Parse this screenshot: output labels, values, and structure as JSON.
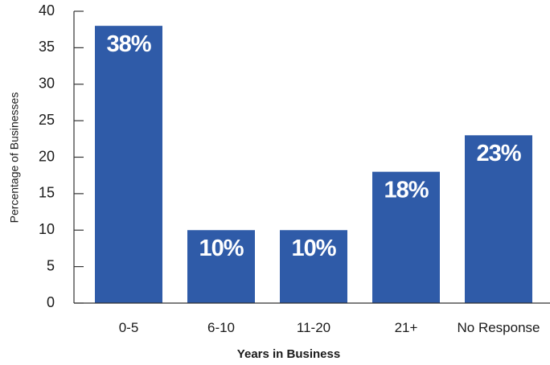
{
  "chart_data": {
    "type": "bar",
    "categories": [
      "0-5",
      "6-10",
      "11-20",
      "21+",
      "No Response"
    ],
    "values": [
      38,
      10,
      10,
      18,
      23
    ],
    "data_labels": [
      "38%",
      "10%",
      "10%",
      "18%",
      "23%"
    ],
    "xlabel": "Years in Business",
    "ylabel": "Percentage of Businesses",
    "ylim": [
      0,
      40
    ],
    "yticks": [
      0,
      5,
      10,
      15,
      20,
      25,
      30,
      35,
      40
    ],
    "grid": false,
    "legend": "none",
    "colors": {
      "bar": "#2f5ba8",
      "label": "#ffffff",
      "axis": "#333333"
    }
  }
}
